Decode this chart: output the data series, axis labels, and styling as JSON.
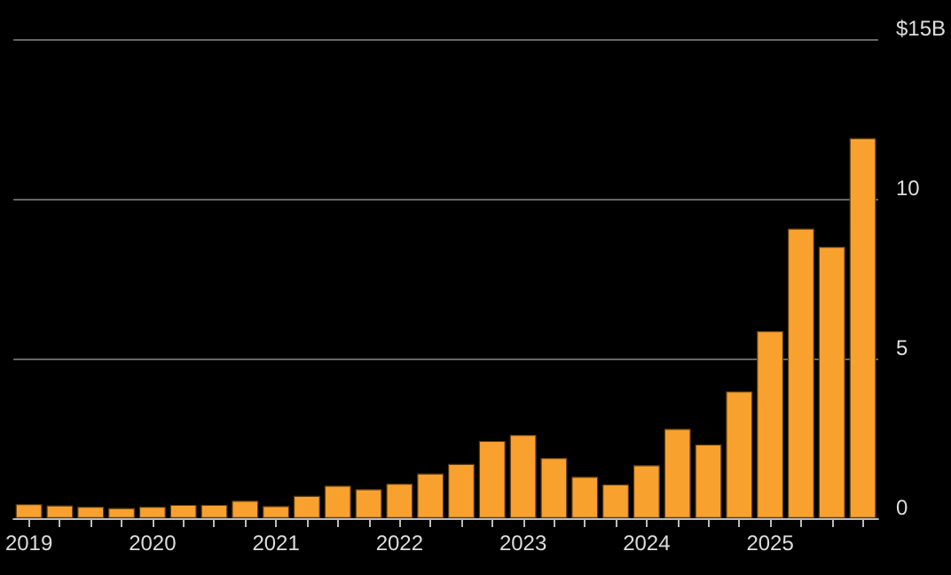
{
  "chart_data": {
    "type": "bar",
    "categories": [
      "2019",
      null,
      null,
      null,
      "2020",
      null,
      null,
      null,
      "2021",
      null,
      null,
      null,
      "2022",
      null,
      null,
      null,
      "2023",
      null,
      null,
      null,
      "2024",
      null,
      null,
      null,
      "2025",
      null,
      null,
      null
    ],
    "values": [
      0.44,
      0.4,
      0.36,
      0.32,
      0.36,
      0.42,
      0.42,
      0.55,
      0.38,
      0.7,
      1.02,
      0.91,
      1.08,
      1.4,
      1.7,
      2.42,
      2.61,
      1.89,
      1.3,
      1.06,
      1.66,
      2.8,
      2.31,
      3.97,
      5.86,
      9.07,
      8.5,
      11.9
    ],
    "color": "#f9a12e",
    "ylim": [
      0,
      15
    ],
    "yticks": [
      0,
      5,
      10,
      {
        "value": 15,
        "label": "$15B"
      }
    ],
    "grid": "y"
  }
}
